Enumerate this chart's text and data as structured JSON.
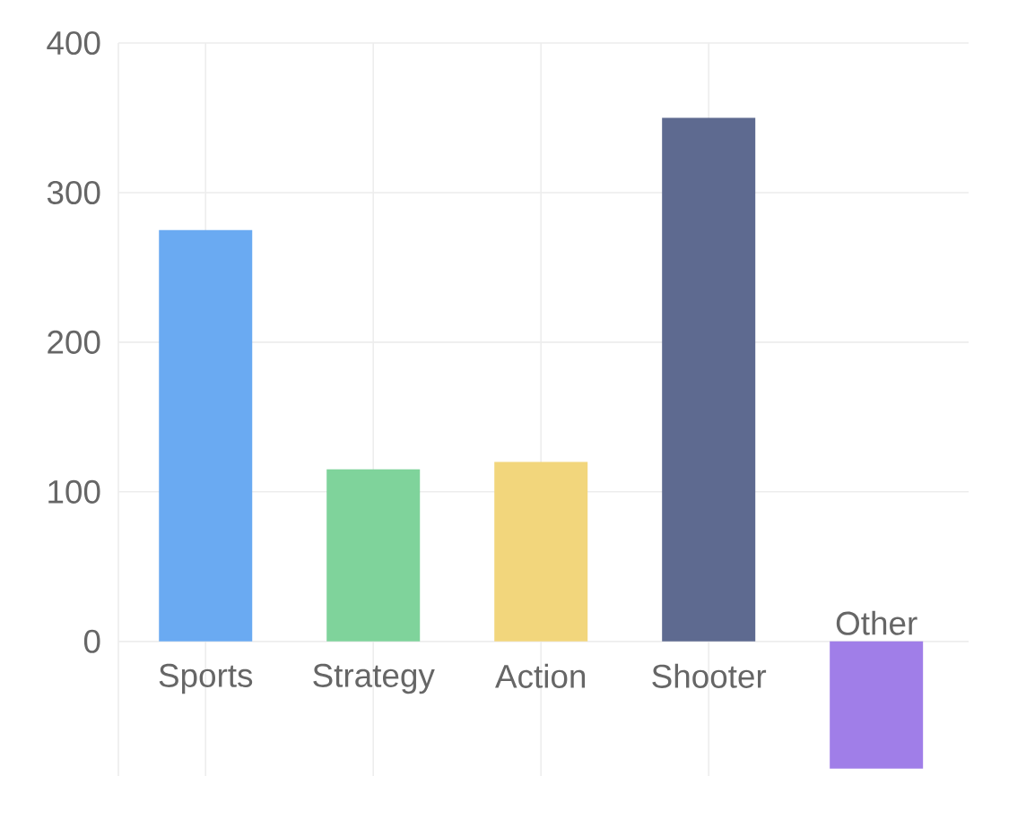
{
  "chart_data": {
    "type": "bar",
    "categories": [
      "Sports",
      "Strategy",
      "Action",
      "Shooter",
      "Other"
    ],
    "values": [
      275,
      115,
      120,
      350,
      -85
    ],
    "colors": [
      "#6aaaf2",
      "#7fd39b",
      "#f2d67c",
      "#5e6a90",
      "#a07ee8"
    ],
    "ylim": [
      -90,
      400
    ],
    "yticks": [
      0,
      100,
      200,
      300,
      400
    ],
    "grid": true
  }
}
